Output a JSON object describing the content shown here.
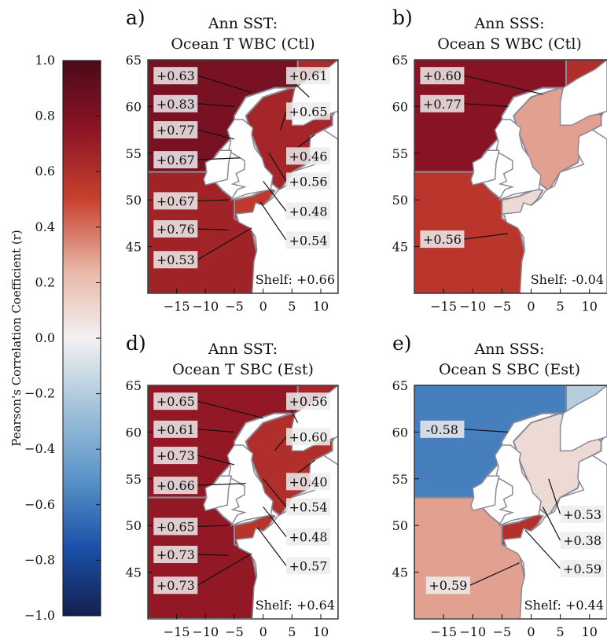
{
  "colorbar": {
    "label": "Pearson's Correlation Coefficient (r)",
    "ticks": [
      "1.0",
      "0.8",
      "0.6",
      "0.4",
      "0.2",
      "0.0",
      "−0.2",
      "−0.4",
      "−0.6",
      "−0.8",
      "−1.0"
    ],
    "range": [
      -1.0,
      1.0
    ],
    "colors": {
      "max": "#4a0b17",
      "high": "#8b1325",
      "mid_high": "#c8412e",
      "low_pos": "#e8b8a8",
      "zero": "#f2f1f1",
      "low_neg": "#a6c5db",
      "mid_neg": "#2d6fbd",
      "min": "#13204e"
    }
  },
  "panels": [
    {
      "id": "a",
      "letter": "a)",
      "title_line1": "Ann SST:",
      "title_line2": "Ocean T WBC (Ctl)",
      "shelf_label": "Shelf: +0.66",
      "x_ticks": [
        "−15",
        "−10",
        "−5",
        "0",
        "5",
        "10"
      ],
      "y_ticks": [
        "65",
        "60",
        "55",
        "50",
        "45"
      ],
      "labels": [
        "+0.63",
        "+0.83",
        "+0.77",
        "+0.67",
        "+0.67",
        "+0.76",
        "+0.53",
        "+0.61",
        "+0.65",
        "+0.46",
        "+0.56",
        "+0.48",
        "+0.54"
      ],
      "region_values": {
        "north_atlantic": 0.83,
        "celtic_biscay": 0.67,
        "north_sea": 0.65,
        "channel": 0.54,
        "norwegian": 0.63
      }
    },
    {
      "id": "b",
      "letter": "b)",
      "title_line1": "Ann SSS:",
      "title_line2": "Ocean S WBC (Ctl)",
      "shelf_label": "Shelf: -0.04",
      "x_ticks": [
        "−15",
        "−10",
        "−5",
        "0",
        "5",
        "10"
      ],
      "y_ticks": [
        "65",
        "60",
        "55",
        "50",
        "45"
      ],
      "labels": [
        "+0.60",
        "+0.77",
        "+0.56"
      ],
      "region_values": {
        "north_atlantic": 0.77,
        "celtic_biscay": 0.56,
        "north_sea": 0.3,
        "channel": 0.1,
        "norwegian": 0.6
      }
    },
    {
      "id": "d",
      "letter": "d)",
      "title_line1": "Ann SST:",
      "title_line2": "Ocean T SBC (Est)",
      "shelf_label": "Shelf: +0.64",
      "x_ticks": [
        "−15",
        "−10",
        "−5",
        "0",
        "5",
        "10"
      ],
      "y_ticks": [
        "65",
        "60",
        "55",
        "50",
        "45"
      ],
      "labels": [
        "+0.65",
        "+0.61",
        "+0.73",
        "+0.66",
        "+0.65",
        "+0.73",
        "+0.73",
        "+0.56",
        "+0.60",
        "+0.40",
        "+0.54",
        "+0.48",
        "+0.57"
      ],
      "region_values": {
        "north_atlantic": 0.73,
        "celtic_biscay": 0.73,
        "north_sea": 0.6,
        "channel": 0.57,
        "norwegian": 0.65
      }
    },
    {
      "id": "e",
      "letter": "e)",
      "title_line1": "Ann SSS:",
      "title_line2": "Ocean S SBC (Est)",
      "shelf_label": "Shelf: +0.44",
      "x_ticks": [
        "−15",
        "−10",
        "−5",
        "0",
        "5",
        "10"
      ],
      "y_ticks": [
        "65",
        "60",
        "55",
        "50",
        "45"
      ],
      "labels": [
        "-0.58",
        "+0.53",
        "+0.38",
        "+0.59",
        "+0.59"
      ],
      "region_values": {
        "north_atlantic": -0.58,
        "celtic_biscay": 0.3,
        "north_sea": 0.1,
        "channel": 0.59,
        "norwegian": -0.2
      }
    }
  ]
}
